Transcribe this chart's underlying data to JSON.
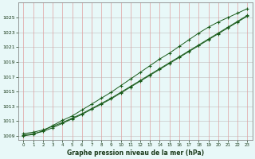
{
  "background_color": "#e8f8f8",
  "plot_bg_color": "#e8f8f8",
  "grid_color_h": "#c8c8c8",
  "grid_color_v": "#e0a0a0",
  "line_color": "#1a5c1a",
  "marker_color": "#1a5c1a",
  "xlabel": "Graphe pression niveau de la mer (hPa)",
  "ylim": [
    1008.5,
    1027.0
  ],
  "xlim": [
    -0.5,
    23.5
  ],
  "yticks": [
    1009,
    1011,
    1013,
    1015,
    1017,
    1019,
    1021,
    1023,
    1025
  ],
  "xticks": [
    0,
    1,
    2,
    3,
    4,
    5,
    6,
    7,
    8,
    9,
    10,
    11,
    12,
    13,
    14,
    15,
    16,
    17,
    18,
    19,
    20,
    21,
    22,
    23
  ],
  "series1": [
    1009.3,
    1009.5,
    1009.8,
    1010.3,
    1010.8,
    1011.4,
    1012.0,
    1012.7,
    1013.4,
    1014.1,
    1014.9,
    1015.7,
    1016.5,
    1017.3,
    1018.1,
    1018.9,
    1019.7,
    1020.5,
    1021.3,
    1022.1,
    1022.9,
    1023.7,
    1024.5,
    1025.3
  ],
  "series2": [
    1009.1,
    1009.3,
    1009.6,
    1010.1,
    1010.7,
    1011.3,
    1011.9,
    1012.6,
    1013.3,
    1014.0,
    1014.8,
    1015.6,
    1016.4,
    1017.2,
    1018.0,
    1018.8,
    1019.6,
    1020.4,
    1021.2,
    1022.0,
    1022.8,
    1023.6,
    1024.4,
    1025.2
  ],
  "series3": [
    1009.0,
    1009.2,
    1009.7,
    1010.4,
    1011.1,
    1011.7,
    1012.5,
    1013.3,
    1014.1,
    1014.9,
    1015.8,
    1016.7,
    1017.6,
    1018.5,
    1019.4,
    1020.2,
    1021.1,
    1022.0,
    1022.9,
    1023.7,
    1024.4,
    1025.0,
    1025.6,
    1026.2
  ]
}
